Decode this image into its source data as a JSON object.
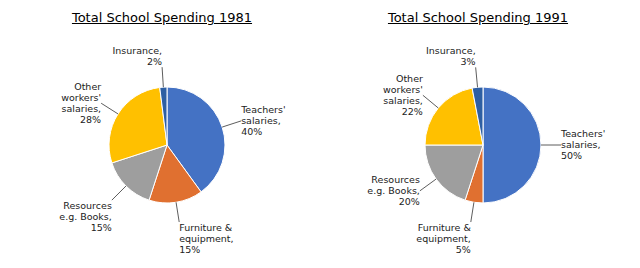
{
  "chart_data": [
    {
      "type": "pie",
      "title": "Total School Spending 1981",
      "categories": [
        "Teachers'\nsalaries,\n40%",
        "Furniture &\nequipment,\n15%",
        "Resources\ne.g. Books,\n15%",
        "Other\nworkers'\nsalaries,\n28%",
        "Insurance,\n2%"
      ],
      "values": [
        40,
        15,
        15,
        28,
        2
      ],
      "colors": [
        "#4472C4",
        "#E07030",
        "#9E9E9E",
        "#FFC000",
        "#2E5FA3"
      ]
    },
    {
      "type": "pie",
      "title": "Total School Spending 1991",
      "categories": [
        "Teachers'\nsalaries,\n50%",
        "Furniture &\nequipment,\n5%",
        "Resources\ne.g. Books,\n20%",
        "Other\nworkers'\nsalaries,\n22%",
        "Insurance,\n3%"
      ],
      "values": [
        50,
        5,
        20,
        22,
        3
      ],
      "colors": [
        "#4472C4",
        "#E07030",
        "#9E9E9E",
        "#FFC000",
        "#2E5FA3"
      ]
    }
  ]
}
